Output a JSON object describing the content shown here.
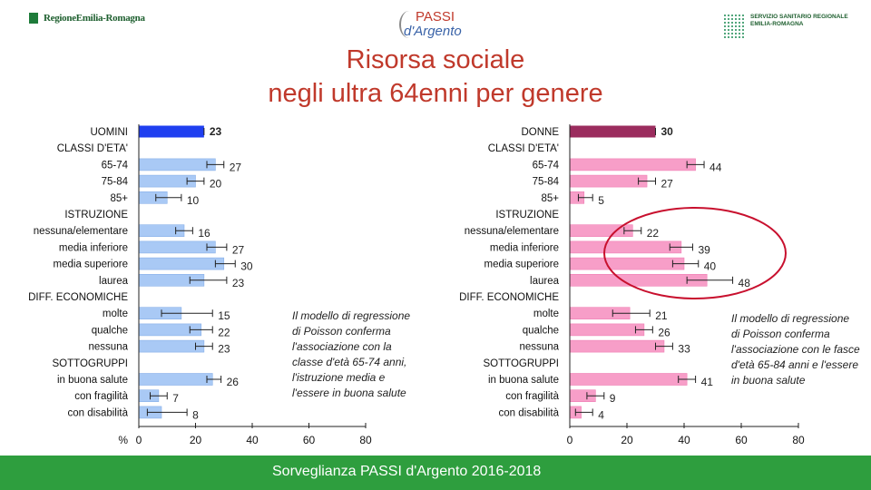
{
  "logos": {
    "left_text": "RegioneEmilia-Romagna",
    "center_text_1": "PASSI",
    "center_text_2": "d'Argento",
    "right_text_1": "SERVIZIO SANITARIO REGIONALE",
    "right_text_2": "EMILIA-ROMAGNA"
  },
  "title_line1": "Risorsa sociale",
  "title_line2": "negli ultra 64enni per genere",
  "notes": {
    "men": "Il modello di regressione di Poisson conferma l'associazione con la classe d'età 65-74 anni, l'istruzione media e l'essere in buona salute",
    "women": "Il modello di regressione di Poisson conferma l'associazione con le fasce d'età 65-84 anni e l'essere in buona salute"
  },
  "footer": "Sorveglianza PASSI d'Argento 2016-2018",
  "colors": {
    "men_total": "#1f3ff0",
    "men_bar": "#a9c9f5",
    "women_total": "#9b2c5e",
    "women_bar": "#f79ec8",
    "title": "#c0392b",
    "footer": "#2e9e3e",
    "circle": "#c8102e"
  },
  "chart_data": [
    {
      "type": "bar",
      "orientation": "horizontal",
      "axis_unit_label": "%",
      "xlim": [
        0,
        80
      ],
      "xticks": [
        0,
        20,
        40,
        60,
        80
      ],
      "rows": [
        {
          "label": "UOMINI",
          "value": 23,
          "lo": 23,
          "hi": 23,
          "kind": "total"
        },
        {
          "label": "CLASSI D'ETA'",
          "kind": "header"
        },
        {
          "label": "65-74",
          "value": 27,
          "lo": 24,
          "hi": 30,
          "kind": "bar"
        },
        {
          "label": "75-84",
          "value": 20,
          "lo": 17,
          "hi": 23,
          "kind": "bar"
        },
        {
          "label": "85+",
          "value": 10,
          "lo": 6,
          "hi": 15,
          "kind": "bar"
        },
        {
          "label": "ISTRUZIONE",
          "kind": "header"
        },
        {
          "label": "nessuna/elementare",
          "value": 16,
          "lo": 13,
          "hi": 19,
          "kind": "bar"
        },
        {
          "label": "media inferiore",
          "value": 27,
          "lo": 24,
          "hi": 31,
          "kind": "bar"
        },
        {
          "label": "media superiore",
          "value": 30,
          "lo": 27,
          "hi": 34,
          "kind": "bar"
        },
        {
          "label": "laurea",
          "value": 23,
          "lo": 18,
          "hi": 31,
          "kind": "bar"
        },
        {
          "label": "DIFF. ECONOMICHE",
          "kind": "header"
        },
        {
          "label": "molte",
          "value": 15,
          "lo": 8,
          "hi": 26,
          "kind": "bar"
        },
        {
          "label": "qualche",
          "value": 22,
          "lo": 18,
          "hi": 26,
          "kind": "bar"
        },
        {
          "label": "nessuna",
          "value": 23,
          "lo": 20,
          "hi": 26,
          "kind": "bar"
        },
        {
          "label": "SOTTOGRUPPI",
          "kind": "header"
        },
        {
          "label": "in buona salute",
          "value": 26,
          "lo": 24,
          "hi": 29,
          "kind": "bar"
        },
        {
          "label": "con fragilità",
          "value": 7,
          "lo": 4,
          "hi": 10,
          "kind": "bar"
        },
        {
          "label": "con disabilità",
          "value": 8,
          "lo": 3,
          "hi": 17,
          "kind": "bar"
        }
      ]
    },
    {
      "type": "bar",
      "orientation": "horizontal",
      "xlim": [
        0,
        80
      ],
      "xticks": [
        0,
        20,
        40,
        60,
        80
      ],
      "rows": [
        {
          "label": "DONNE",
          "value": 30,
          "lo": 30,
          "hi": 30,
          "kind": "total"
        },
        {
          "label": "CLASSI D'ETA'",
          "kind": "header"
        },
        {
          "label": "65-74",
          "value": 44,
          "lo": 41,
          "hi": 47,
          "kind": "bar"
        },
        {
          "label": "75-84",
          "value": 27,
          "lo": 24,
          "hi": 30,
          "kind": "bar"
        },
        {
          "label": "85+",
          "value": 5,
          "lo": 3,
          "hi": 8,
          "kind": "bar"
        },
        {
          "label": "ISTRUZIONE",
          "kind": "header"
        },
        {
          "label": "nessuna/elementare",
          "value": 22,
          "lo": 19,
          "hi": 25,
          "kind": "bar"
        },
        {
          "label": "media inferiore",
          "value": 39,
          "lo": 35,
          "hi": 43,
          "kind": "bar"
        },
        {
          "label": "media superiore",
          "value": 40,
          "lo": 36,
          "hi": 45,
          "kind": "bar"
        },
        {
          "label": "laurea",
          "value": 48,
          "lo": 41,
          "hi": 57,
          "kind": "bar"
        },
        {
          "label": "DIFF. ECONOMICHE",
          "kind": "header"
        },
        {
          "label": "molte",
          "value": 21,
          "lo": 15,
          "hi": 28,
          "kind": "bar"
        },
        {
          "label": "qualche",
          "value": 26,
          "lo": 23,
          "hi": 29,
          "kind": "bar"
        },
        {
          "label": "nessuna",
          "value": 33,
          "lo": 30,
          "hi": 36,
          "kind": "bar"
        },
        {
          "label": "SOTTOGRUPPI",
          "kind": "header"
        },
        {
          "label": "in buona salute",
          "value": 41,
          "lo": 38,
          "hi": 44,
          "kind": "bar"
        },
        {
          "label": "con fragilità",
          "value": 9,
          "lo": 6,
          "hi": 12,
          "kind": "bar"
        },
        {
          "label": "con disabilità",
          "value": 4,
          "lo": 2,
          "hi": 8,
          "kind": "bar"
        }
      ]
    }
  ]
}
